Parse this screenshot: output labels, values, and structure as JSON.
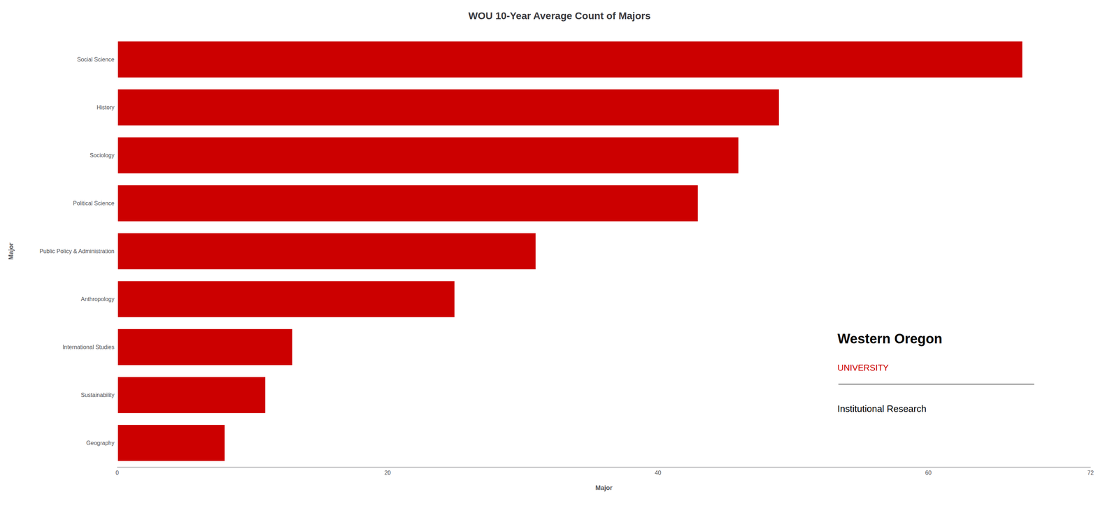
{
  "chart_data": {
    "type": "bar",
    "orientation": "horizontal",
    "title": "WOU 10-Year Average Count of Majors",
    "categories": [
      "Geography",
      "Sustainability",
      "International Studies",
      "Anthropology",
      "Public Policy & Administration",
      "Political Science",
      "Sociology",
      "History",
      "Social Science"
    ],
    "values": [
      8,
      11,
      13,
      25,
      31,
      43,
      46,
      49,
      67
    ],
    "color": "#CC0000",
    "x_label": "Major",
    "y_label": "Major",
    "xlim": [
      0,
      72
    ],
    "xticks": [
      0,
      20,
      40,
      60
    ],
    "grid": false,
    "annotations": [
      "Western Oregon",
      "UNIVERSITY",
      "Institutional Research"
    ]
  }
}
